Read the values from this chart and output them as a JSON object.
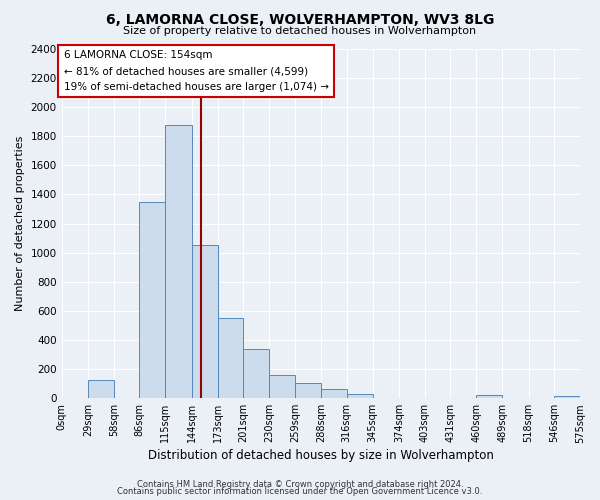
{
  "title": "6, LAMORNA CLOSE, WOLVERHAMPTON, WV3 8LG",
  "subtitle": "Size of property relative to detached houses in Wolverhampton",
  "xlabel": "Distribution of detached houses by size in Wolverhampton",
  "ylabel": "Number of detached properties",
  "bar_color": "#ccdcec",
  "bar_edge_color": "#5588bb",
  "bar_left_edges": [
    0,
    29,
    58,
    86,
    115,
    144,
    173,
    201,
    230,
    259,
    288,
    316,
    345,
    374,
    403,
    431,
    460,
    489,
    518,
    546
  ],
  "bar_widths": [
    29,
    29,
    28,
    29,
    29,
    29,
    28,
    29,
    29,
    29,
    28,
    29,
    29,
    29,
    28,
    29,
    29,
    29,
    28,
    29
  ],
  "bar_heights": [
    0,
    125,
    0,
    1350,
    1880,
    1050,
    550,
    340,
    160,
    105,
    60,
    30,
    0,
    0,
    0,
    0,
    20,
    0,
    0,
    15
  ],
  "x_tick_labels": [
    "0sqm",
    "29sqm",
    "58sqm",
    "86sqm",
    "115sqm",
    "144sqm",
    "173sqm",
    "201sqm",
    "230sqm",
    "259sqm",
    "288sqm",
    "316sqm",
    "345sqm",
    "374sqm",
    "403sqm",
    "431sqm",
    "460sqm",
    "489sqm",
    "518sqm",
    "546sqm",
    "575sqm"
  ],
  "x_tick_positions": [
    0,
    29,
    58,
    86,
    115,
    144,
    173,
    201,
    230,
    259,
    288,
    316,
    345,
    374,
    403,
    431,
    460,
    489,
    518,
    546,
    575
  ],
  "xlim": [
    0,
    604
  ],
  "ylim": [
    0,
    2400
  ],
  "yticks": [
    0,
    200,
    400,
    600,
    800,
    1000,
    1200,
    1400,
    1600,
    1800,
    2000,
    2200,
    2400
  ],
  "vline_x": 154,
  "vline_color": "#990000",
  "annotation_title": "6 LAMORNA CLOSE: 154sqm",
  "annotation_line1": "← 81% of detached houses are smaller (4,599)",
  "annotation_line2": "19% of semi-detached houses are larger (1,074) →",
  "annotation_box_facecolor": "#ffffff",
  "annotation_box_edgecolor": "#cc0000",
  "footnote1": "Contains HM Land Registry data © Crown copyright and database right 2024.",
  "footnote2": "Contains public sector information licensed under the Open Government Licence v3.0.",
  "bg_color": "#eaf0f6",
  "plot_bg_color": "#eaf0f6",
  "grid_color": "#ffffff",
  "title_fontsize": 10,
  "subtitle_fontsize": 8
}
